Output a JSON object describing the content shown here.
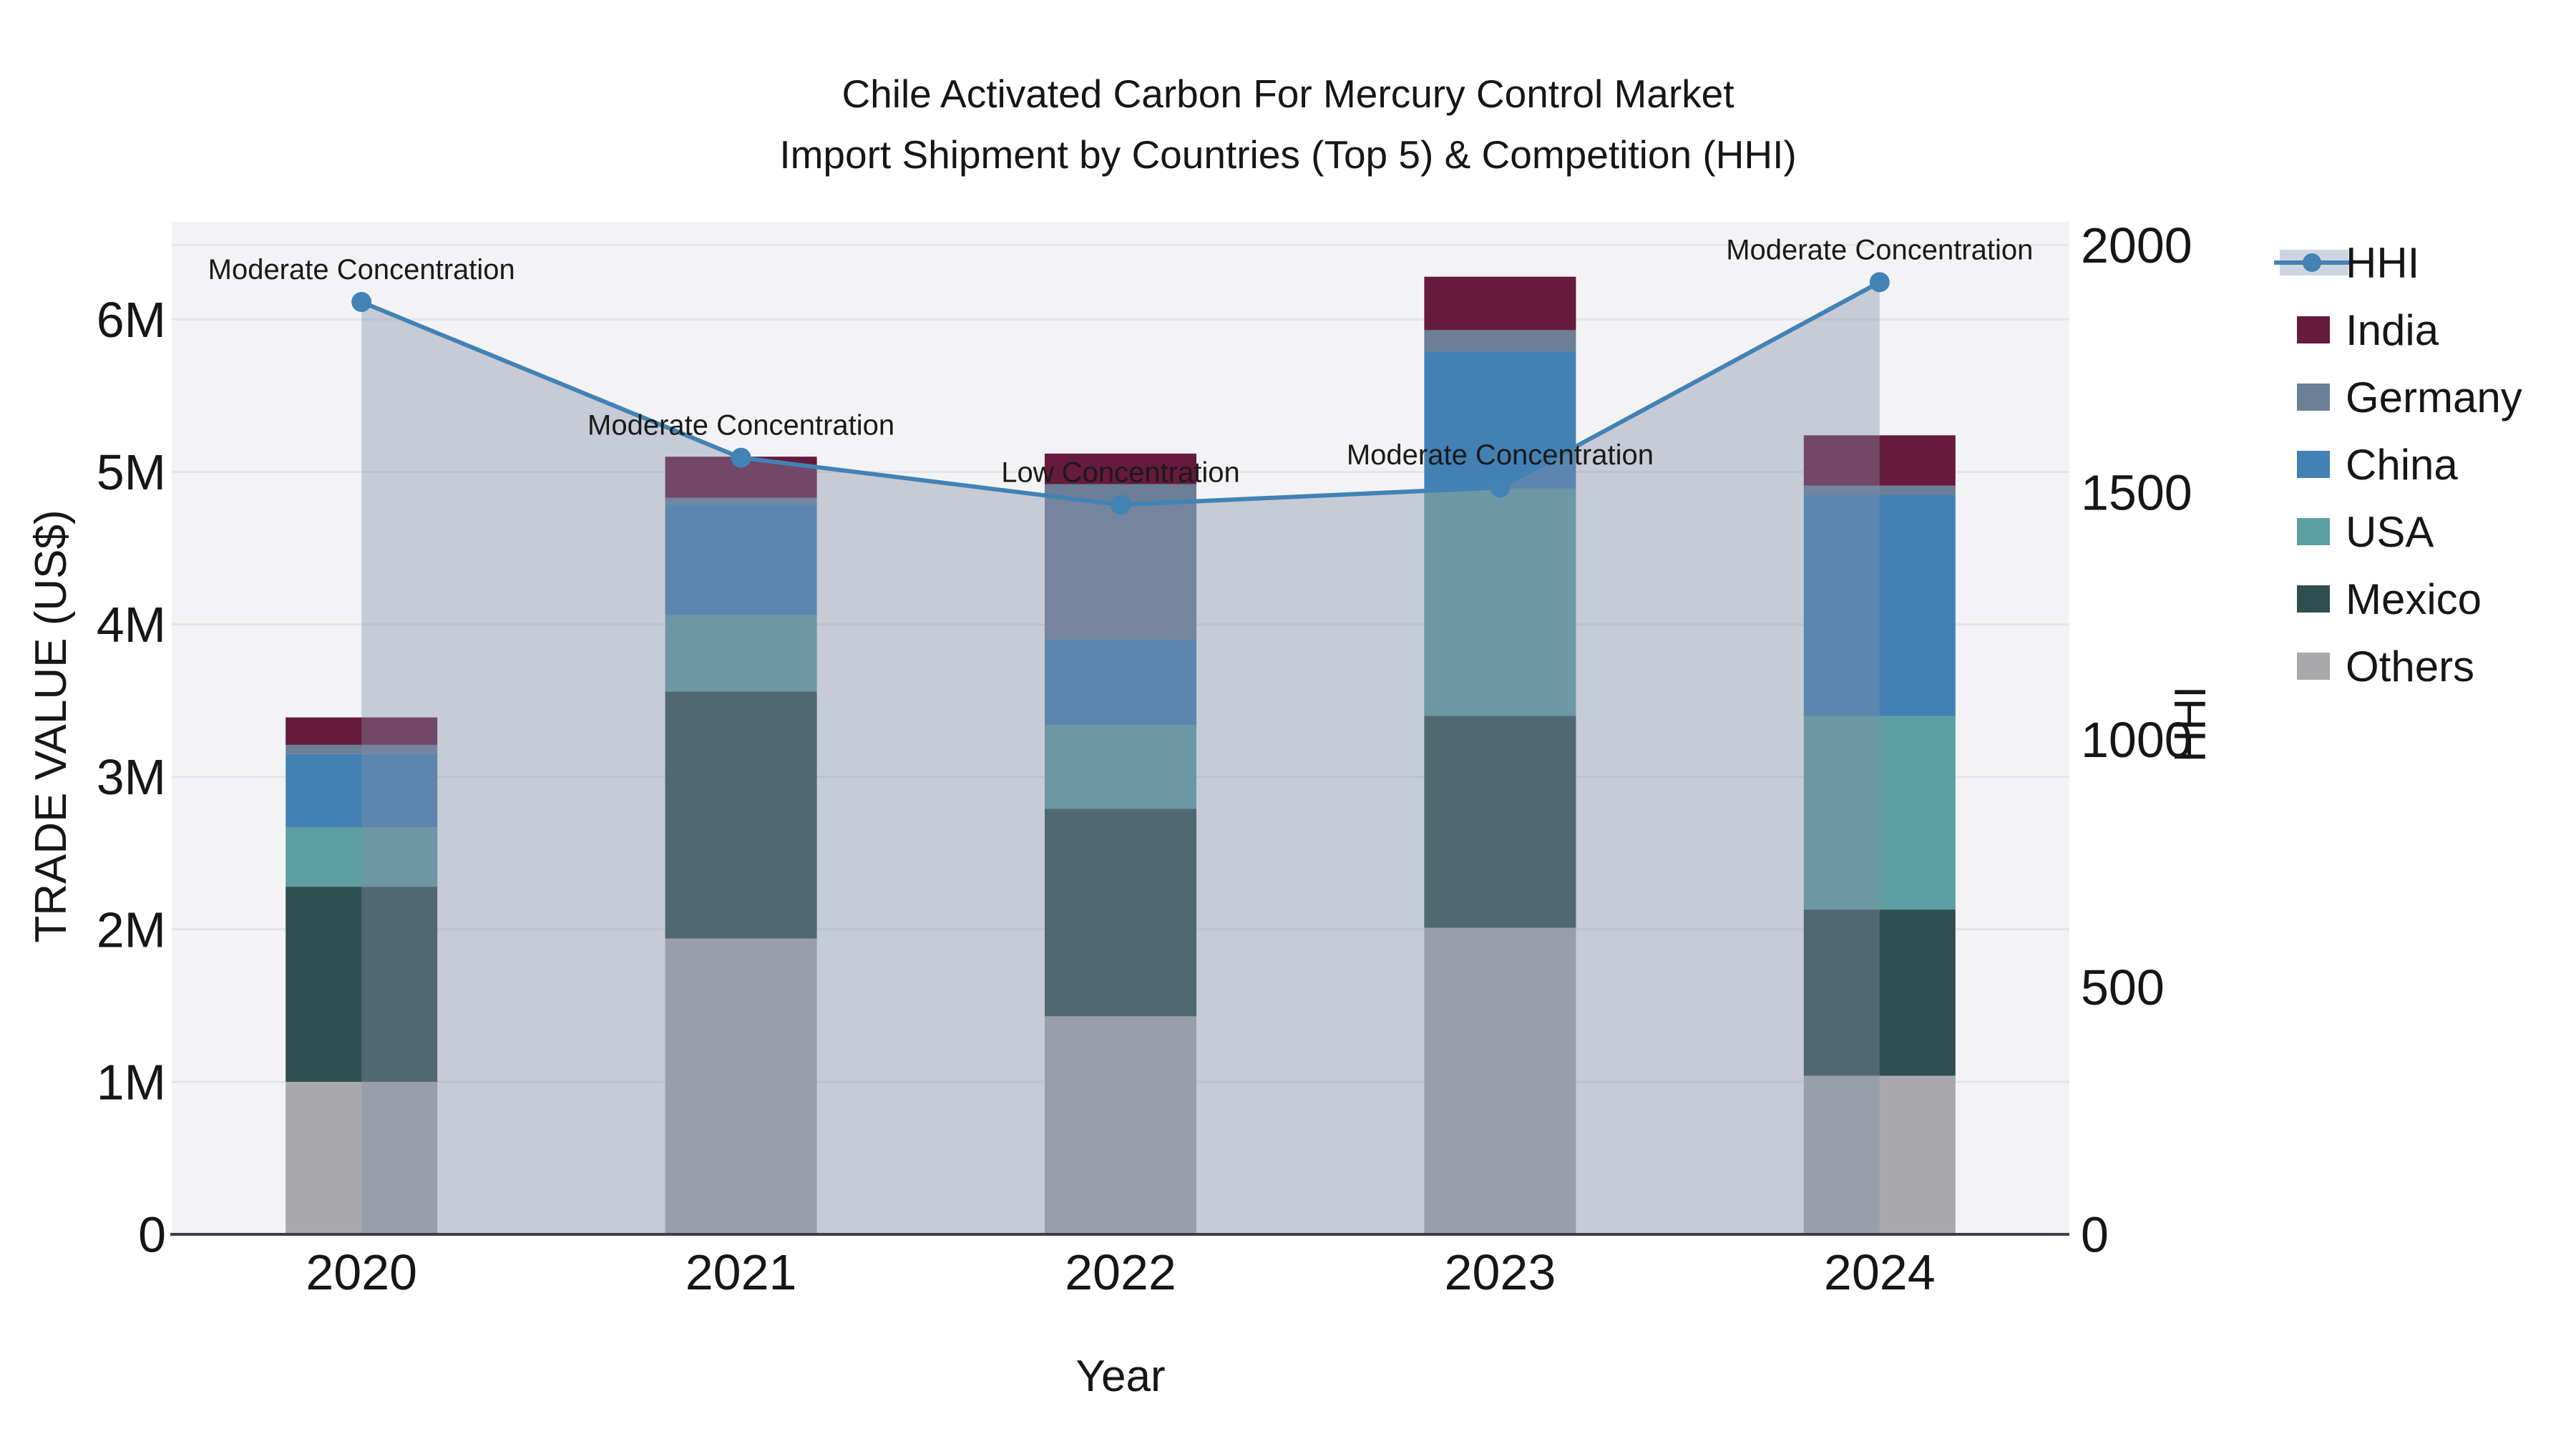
{
  "title": {
    "line1": "Chile Activated Carbon For Mercury Control Market",
    "line2": "Import Shipment by Countries (Top 5) & Competition (HHI)"
  },
  "axes": {
    "x_title": "Year",
    "y_left_title": "TRADE VALUE (US$)",
    "y_right_title": "HHI"
  },
  "legend": {
    "items": [
      {
        "label": "HHI",
        "color": "#4282b4",
        "swatch": "line-area"
      },
      {
        "label": "India",
        "color": "#661a3c",
        "swatch": "square"
      },
      {
        "label": "Germany",
        "color": "#6b7f96",
        "swatch": "square"
      },
      {
        "label": "China",
        "color": "#4381b5",
        "swatch": "square"
      },
      {
        "label": "USA",
        "color": "#5d9fa2",
        "swatch": "square"
      },
      {
        "label": "Mexico",
        "color": "#2f4f4e",
        "swatch": "square"
      },
      {
        "label": "Others",
        "color": "#a9a9ab",
        "swatch": "square"
      }
    ]
  },
  "chart_data": {
    "type": "bar",
    "stacked": true,
    "categories": [
      "2020",
      "2021",
      "2022",
      "2023",
      "2024"
    ],
    "series": [
      {
        "name": "Others",
        "color": "#a9a9ab",
        "values": [
          1000000,
          1940000,
          1430000,
          2010000,
          1040000
        ]
      },
      {
        "name": "Mexico",
        "color": "#2f4f4e",
        "values": [
          1280000,
          1620000,
          1360000,
          1390000,
          1090000
        ]
      },
      {
        "name": "USA",
        "color": "#5d9fa2",
        "values": [
          390000,
          500000,
          550000,
          1490000,
          1270000
        ]
      },
      {
        "name": "China",
        "color": "#4381b5",
        "values": [
          480000,
          730000,
          560000,
          900000,
          1450000
        ]
      },
      {
        "name": "Germany",
        "color": "#6b7f96",
        "values": [
          60000,
          40000,
          1020000,
          140000,
          60000
        ]
      },
      {
        "name": "India",
        "color": "#661a3c",
        "values": [
          180000,
          270000,
          200000,
          350000,
          330000
        ]
      }
    ],
    "line": {
      "name": "HHI",
      "color": "#4282b4",
      "area_color": "rgba(130,142,168,0.40)",
      "values": [
        1885,
        1570,
        1475,
        1510,
        1925
      ],
      "annotations": [
        "Moderate Concentration",
        "Moderate Concentration",
        "Low Concentration",
        "Moderate Concentration",
        "Moderate Concentration"
      ]
    },
    "title": "Chile Activated Carbon For Mercury Control Market Import Shipment by Countries (Top 5) & Competition (HHI)",
    "xlabel": "Year",
    "ylabel": "TRADE VALUE (US$)",
    "ylabel_right": "HHI",
    "ylim": [
      0,
      6640000
    ],
    "ylim_right": [
      0,
      2047
    ],
    "yticks_left": {
      "values": [
        0,
        1000000,
        2000000,
        3000000,
        4000000,
        5000000,
        6000000
      ],
      "labels": [
        "0",
        "1M",
        "2M",
        "3M",
        "4M",
        "5M",
        "6M"
      ]
    },
    "yticks_right": {
      "values": [
        0,
        500,
        1000,
        1500,
        2000
      ],
      "labels": [
        "0",
        "500",
        "1000",
        "1500",
        "2000"
      ]
    },
    "grid": true,
    "legend_position": "right"
  }
}
